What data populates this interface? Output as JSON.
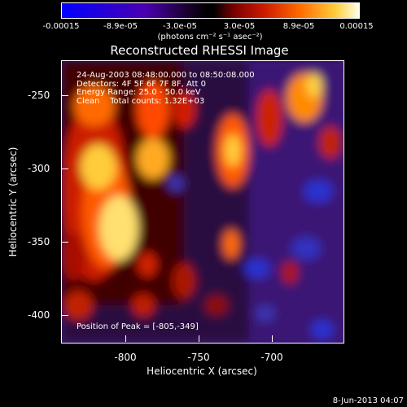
{
  "colorbar": {
    "ticks": [
      "-0.00015",
      "-8.9e-05",
      "-3.0e-05",
      "3.0e-05",
      "8.9e-05",
      "0.00015"
    ],
    "units": "(photons cm⁻² s⁻¹ asec⁻²)"
  },
  "title": "Reconstructed RHESSI Image",
  "annotation": {
    "time_range": "24-Aug-2003 08:48:00.000 to 08:50:08.000",
    "detectors": "Detectors: 4F 5F 6F 7F 8F, Att 0",
    "energy": "Energy Range: 25.0 - 50.0 keV",
    "clean": "Clean    Total counts: 1.32E+03",
    "peak": "Position of Peak = [-805,-349]"
  },
  "axes": {
    "xlabel": "Heliocentric X (arcsec)",
    "ylabel": "Heliocentric Y (arcsec)",
    "xticks": [
      "-800",
      "-750",
      "-700"
    ],
    "yticks": [
      "-250",
      "-300",
      "-350",
      "-400"
    ]
  },
  "footer": "8-Jun-2013 04:07",
  "colors": {
    "hot": "#ffcc3a",
    "background": "#3a1775",
    "cold": "#0000ff"
  }
}
